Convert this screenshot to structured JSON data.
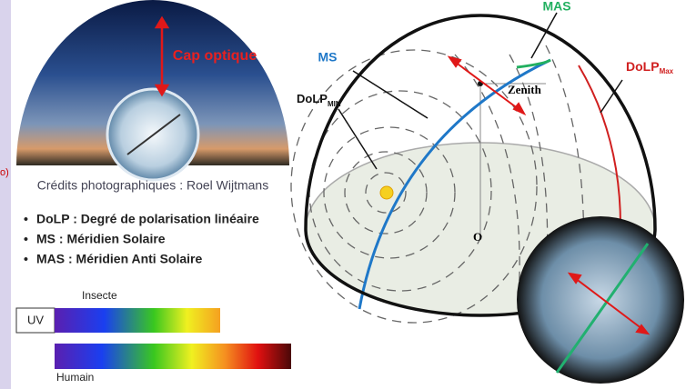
{
  "photo": {
    "arrow_label": "Cap optique",
    "credits": "Crédits photographiques : Roel Wijtmans"
  },
  "edge_fragment": "o)",
  "legend": [
    "DoLP : Degré de polarisation linéaire",
    "MS : Méridien Solaire",
    "MAS : Méridien Anti Solaire"
  ],
  "spectrum": {
    "insect": "Insecte",
    "uv": "UV",
    "human": "Humain"
  },
  "sky": {
    "mas": "MAS",
    "ms": "MS",
    "dolp_min": "DoLP",
    "dolp_min_sub": "MIN",
    "dolp_max": "DoLP",
    "dolp_max_sub": "Max",
    "zenith": "Zenith",
    "origin": "O"
  }
}
